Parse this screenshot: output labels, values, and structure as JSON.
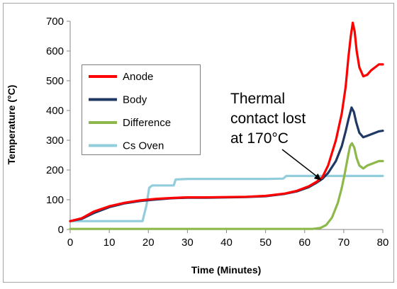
{
  "chart_data": {
    "type": "line",
    "title": "",
    "xlabel": "Time (Minutes)",
    "ylabel": "Temperature (°C)",
    "xlim": [
      0,
      80
    ],
    "ylim": [
      0,
      700
    ],
    "x_ticks": [
      0,
      10,
      20,
      30,
      40,
      50,
      60,
      70,
      80
    ],
    "y_ticks": [
      0,
      100,
      200,
      300,
      400,
      500,
      600,
      700
    ],
    "grid": false,
    "legend": {
      "placement": "upper-left",
      "entries": [
        "Anode",
        "Body",
        "Difference",
        "Cs Oven"
      ]
    },
    "annotation": {
      "lines": [
        "Thermal",
        "contact lost",
        "at 170°C"
      ],
      "points_to": {
        "x": 64.3,
        "y": 165
      }
    },
    "series": [
      {
        "name": "Anode",
        "color": "#ff0000",
        "points": [
          [
            0,
            28
          ],
          [
            3,
            38
          ],
          [
            6,
            60
          ],
          [
            10,
            78
          ],
          [
            14,
            90
          ],
          [
            18,
            98
          ],
          [
            22,
            103
          ],
          [
            26,
            106
          ],
          [
            30,
            108
          ],
          [
            35,
            108
          ],
          [
            40,
            109
          ],
          [
            45,
            110
          ],
          [
            50,
            113
          ],
          [
            55,
            121
          ],
          [
            58,
            130
          ],
          [
            61,
            145
          ],
          [
            63,
            160
          ],
          [
            64.5,
            175
          ],
          [
            66,
            215
          ],
          [
            68,
            300
          ],
          [
            69.5,
            390
          ],
          [
            70.5,
            480
          ],
          [
            71.2,
            580
          ],
          [
            71.8,
            650
          ],
          [
            72.3,
            695
          ],
          [
            72.8,
            665
          ],
          [
            73.3,
            600
          ],
          [
            74,
            545
          ],
          [
            75,
            515
          ],
          [
            76,
            520
          ],
          [
            77,
            535
          ],
          [
            78,
            545
          ],
          [
            79,
            555
          ],
          [
            80,
            555
          ]
        ]
      },
      {
        "name": "Body",
        "color": "#1f3864",
        "points": [
          [
            0,
            28
          ],
          [
            3,
            36
          ],
          [
            6,
            55
          ],
          [
            10,
            75
          ],
          [
            14,
            88
          ],
          [
            18,
            96
          ],
          [
            22,
            101
          ],
          [
            26,
            105
          ],
          [
            30,
            107
          ],
          [
            35,
            107
          ],
          [
            40,
            108
          ],
          [
            45,
            109
          ],
          [
            50,
            112
          ],
          [
            55,
            120
          ],
          [
            58,
            128
          ],
          [
            61,
            142
          ],
          [
            63,
            157
          ],
          [
            64.5,
            170
          ],
          [
            66,
            190
          ],
          [
            68,
            230
          ],
          [
            69.5,
            280
          ],
          [
            70.5,
            330
          ],
          [
            71.2,
            370
          ],
          [
            72,
            410
          ],
          [
            72.6,
            395
          ],
          [
            73.2,
            360
          ],
          [
            74,
            325
          ],
          [
            75,
            310
          ],
          [
            76,
            315
          ],
          [
            77,
            320
          ],
          [
            78,
            325
          ],
          [
            79,
            330
          ],
          [
            80,
            332
          ]
        ]
      },
      {
        "name": "Difference",
        "color": "#8db84a",
        "points": [
          [
            0,
            2
          ],
          [
            10,
            2
          ],
          [
            20,
            2
          ],
          [
            30,
            2
          ],
          [
            40,
            2
          ],
          [
            50,
            2
          ],
          [
            58,
            2
          ],
          [
            62,
            2
          ],
          [
            64,
            5
          ],
          [
            65.5,
            15
          ],
          [
            67,
            40
          ],
          [
            68.5,
            90
          ],
          [
            69.5,
            140
          ],
          [
            70.3,
            190
          ],
          [
            71,
            240
          ],
          [
            71.6,
            280
          ],
          [
            72.1,
            290
          ],
          [
            72.7,
            275
          ],
          [
            73.3,
            240
          ],
          [
            74,
            215
          ],
          [
            75,
            205
          ],
          [
            76,
            215
          ],
          [
            77,
            220
          ],
          [
            78,
            225
          ],
          [
            79,
            230
          ],
          [
            80,
            230
          ]
        ]
      },
      {
        "name": "Cs Oven",
        "color": "#92cddc",
        "points": [
          [
            0,
            28
          ],
          [
            5,
            28
          ],
          [
            10,
            28
          ],
          [
            15,
            28
          ],
          [
            18.5,
            28
          ],
          [
            19.5,
            80
          ],
          [
            20.2,
            140
          ],
          [
            21,
            148
          ],
          [
            24,
            148
          ],
          [
            26.5,
            148
          ],
          [
            27,
            168
          ],
          [
            30,
            170
          ],
          [
            40,
            170
          ],
          [
            50,
            170
          ],
          [
            54.5,
            171
          ],
          [
            55.3,
            180
          ],
          [
            60,
            180
          ],
          [
            65,
            180
          ],
          [
            70,
            180
          ],
          [
            75,
            180
          ],
          [
            80,
            180
          ]
        ]
      }
    ]
  }
}
